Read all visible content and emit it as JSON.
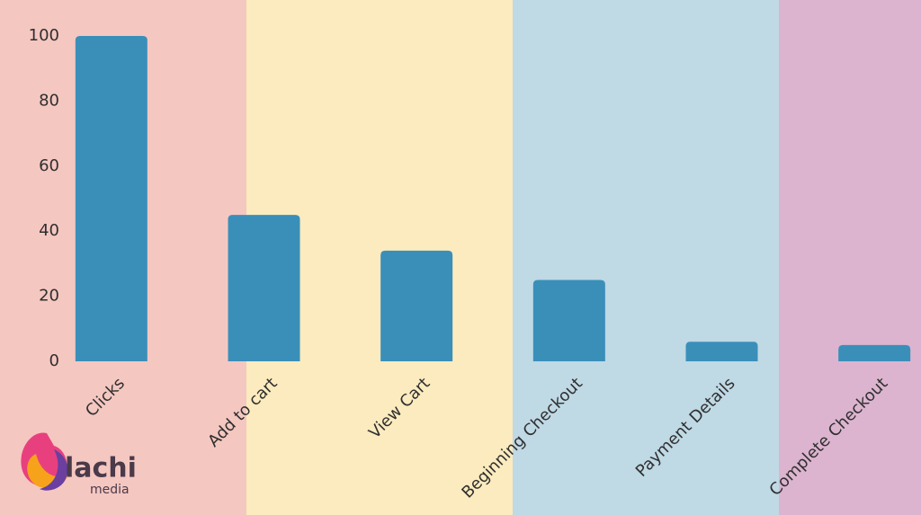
{
  "chart_data": {
    "type": "bar",
    "categories": [
      "Clicks",
      "Add to cart",
      "View Cart",
      "Beginning Checkout",
      "Payment Details",
      "Complete Checkout"
    ],
    "values": [
      100,
      45,
      34,
      25,
      6,
      5
    ],
    "color": "#3a8fb9",
    "ylim": [
      0,
      100
    ],
    "yticks": [
      0,
      20,
      40,
      60,
      80,
      100
    ],
    "grid": false
  },
  "logo": {
    "name": "lachi",
    "tagline": "media"
  }
}
